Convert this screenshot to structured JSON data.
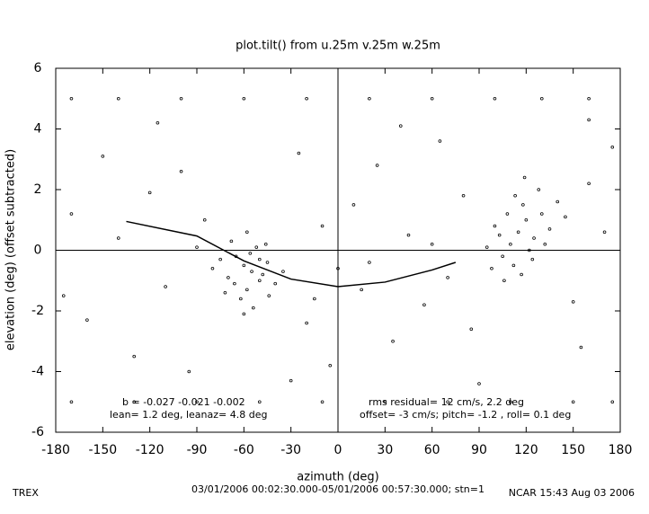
{
  "chart_data": {
    "type": "scatter",
    "title": "plot.tilt() from u.25m v.25m w.25m",
    "x_label": "azimuth (deg)",
    "y_label": "elevation (deg)  (offset subtracted)",
    "xlim": [
      -180,
      180
    ],
    "ylim": [
      -6,
      6
    ],
    "xticks": [
      -180,
      -150,
      -120,
      -90,
      -60,
      -30,
      0,
      30,
      60,
      90,
      120,
      150,
      180
    ],
    "yticks": [
      -6,
      -4,
      -2,
      0,
      2,
      4,
      6
    ],
    "zero_lines": true,
    "series": [
      {
        "mode": "markers",
        "color": "#000000",
        "x": [
          -55,
          -60,
          -50,
          -65,
          -45,
          -70,
          -58,
          -52,
          -62,
          -48,
          -75,
          -40,
          -68,
          -56,
          -44,
          -80,
          -35,
          -60,
          -54,
          -66,
          -50,
          -72,
          -58,
          -46,
          115,
          110,
          120,
          105,
          125,
          118,
          100,
          130,
          112,
          122,
          108,
          135,
          95,
          128,
          117,
          103,
          140,
          113,
          124,
          98,
          132,
          119,
          106,
          145,
          -170,
          -160,
          -150,
          -140,
          -130,
          -120,
          -110,
          -100,
          -95,
          -85,
          -25,
          -20,
          -10,
          -5,
          10,
          20,
          25,
          35,
          45,
          55,
          65,
          70,
          80,
          85,
          150,
          160,
          170,
          175,
          -175,
          155,
          -115,
          40,
          -30,
          90,
          0,
          15,
          -15,
          -90,
          60,
          160,
          -170,
          -140,
          -100,
          -60,
          -20,
          20,
          60,
          100,
          130,
          160,
          -170,
          -130,
          -90,
          -50,
          -10,
          30,
          70,
          110,
          150,
          175
        ],
        "values": [
          -0.7,
          -0.5,
          -1.0,
          -0.2,
          -0.4,
          -0.9,
          -1.3,
          0.1,
          -1.6,
          -0.8,
          -0.3,
          -1.1,
          0.3,
          -0.1,
          -1.5,
          -0.6,
          -0.7,
          -2.1,
          -1.9,
          -1.1,
          -0.3,
          -1.4,
          0.6,
          0.2,
          0.6,
          0.2,
          1.0,
          -0.2,
          0.4,
          1.5,
          0.8,
          1.2,
          -0.5,
          0.0,
          1.2,
          0.7,
          0.1,
          2.0,
          -0.8,
          0.5,
          1.6,
          1.8,
          -0.3,
          -0.6,
          0.2,
          2.4,
          -1.0,
          1.1,
          1.2,
          -2.3,
          3.1,
          0.4,
          -3.5,
          1.9,
          -1.2,
          2.6,
          -4.0,
          1.0,
          3.2,
          -2.4,
          0.8,
          -3.8,
          1.5,
          -0.4,
          2.8,
          -3.0,
          0.5,
          -1.8,
          3.6,
          -0.9,
          1.8,
          -2.6,
          -1.7,
          2.2,
          0.6,
          3.4,
          -1.5,
          -3.2,
          4.2,
          4.1,
          -4.3,
          -4.4,
          -0.6,
          -1.3,
          -1.6,
          0.1,
          0.2,
          4.3,
          5,
          5,
          5,
          5,
          5,
          5,
          5,
          5,
          5,
          5,
          -5,
          -5,
          -5,
          -5,
          -5,
          -5,
          -5,
          -5,
          -5,
          -5
        ]
      },
      {
        "mode": "line",
        "color": "#000000",
        "x": [
          -135,
          -90,
          -60,
          -30,
          0,
          30,
          60,
          75
        ],
        "values": [
          0.95,
          0.47,
          -0.35,
          -0.95,
          -1.2,
          -1.05,
          -0.65,
          -0.4
        ]
      }
    ],
    "annotations": [
      "b = -0.027 -0.021 -0.002",
      "lean= 1.2 deg, leanaz= 4.8 deg",
      "rms residual= 12 cm/s, 2.2 deg",
      "offset= -3 cm/s; pitch= -1.2 , roll=  0.1 deg"
    ],
    "footer_left": "TREX",
    "footer_center": "03/01/2006 00:02:30.000-05/01/2006 00:57:30.000; stn=1",
    "footer_right": "NCAR 15:43 Aug 03 2006"
  }
}
